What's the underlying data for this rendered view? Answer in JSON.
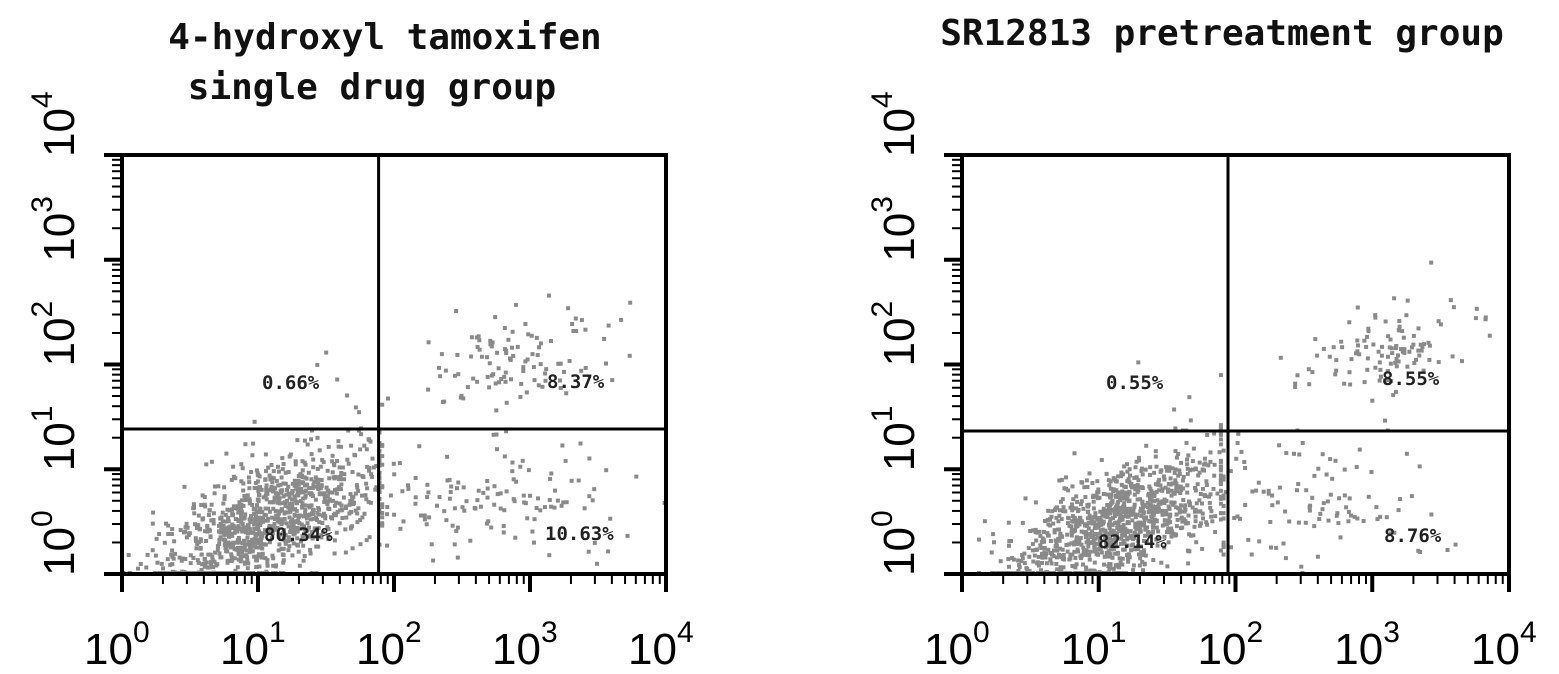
{
  "colors": {
    "frame": "#000000",
    "dots": "#8a8a8a",
    "background": "#ffffff"
  },
  "chart_data": [
    {
      "type": "scatter",
      "title_lines": [
        "4-hydroxyl tamoxifen",
        "single drug group"
      ],
      "x_scale": "log",
      "y_scale": "log",
      "xlim": [
        1,
        10000
      ],
      "ylim": [
        1,
        10000
      ],
      "x_ticks": [
        {
          "base": "10",
          "exp": "0"
        },
        {
          "base": "10",
          "exp": "1"
        },
        {
          "base": "10",
          "exp": "2"
        },
        {
          "base": "10",
          "exp": "3"
        },
        {
          "base": "10",
          "exp": "4"
        }
      ],
      "y_ticks": [
        {
          "base": "10",
          "exp": "0"
        },
        {
          "base": "10",
          "exp": "1"
        },
        {
          "base": "10",
          "exp": "2"
        },
        {
          "base": "10",
          "exp": "3"
        },
        {
          "base": "10",
          "exp": "4"
        }
      ],
      "gate": {
        "x": 80,
        "y": 24
      },
      "quadrant_labels": {
        "upper_left": "0.66%",
        "upper_right": "8.37%",
        "lower_left": "80.34%",
        "lower_right": "10.63%"
      },
      "populations": [
        {
          "region": "lower_left",
          "percent": 80.34,
          "n": 1050,
          "cx": 12,
          "cy": 3.2,
          "sx": 0.42,
          "sy": 0.33,
          "rho": 0.62,
          "xr": [
            1,
            80
          ],
          "yr": [
            1,
            24
          ]
        },
        {
          "region": "lower_right",
          "percent": 10.63,
          "n": 140,
          "cx": 400,
          "cy": 5,
          "sx": 0.55,
          "sy": 0.3,
          "rho": 0.0,
          "xr": [
            80,
            10000
          ],
          "yr": [
            1,
            24
          ]
        },
        {
          "region": "upper_right",
          "percent": 8.37,
          "n": 110,
          "cx": 700,
          "cy": 120,
          "sx": 0.35,
          "sy": 0.22,
          "rho": 0.3,
          "xr": [
            80,
            10000
          ],
          "yr": [
            24,
            10000
          ]
        },
        {
          "region": "upper_left",
          "percent": 0.66,
          "n": 9,
          "cx": 45,
          "cy": 55,
          "sx": 0.2,
          "sy": 0.25,
          "rho": 0.0,
          "xr": [
            1,
            80
          ],
          "yr": [
            24,
            10000
          ]
        }
      ]
    },
    {
      "type": "scatter",
      "title_lines": [
        "SR12813 pretreatment group"
      ],
      "x_scale": "log",
      "y_scale": "log",
      "xlim": [
        1,
        10000
      ],
      "ylim": [
        1,
        10000
      ],
      "x_ticks": [
        {
          "base": "10",
          "exp": "0"
        },
        {
          "base": "10",
          "exp": "1"
        },
        {
          "base": "10",
          "exp": "2"
        },
        {
          "base": "10",
          "exp": "3"
        },
        {
          "base": "10",
          "exp": "4"
        }
      ],
      "y_ticks": [
        {
          "base": "10",
          "exp": "0"
        },
        {
          "base": "10",
          "exp": "1"
        },
        {
          "base": "10",
          "exp": "2"
        },
        {
          "base": "10",
          "exp": "3"
        },
        {
          "base": "10",
          "exp": "4"
        }
      ],
      "gate": {
        "x": 80,
        "y": 24
      },
      "quadrant_labels": {
        "upper_left": "0.55%",
        "upper_right": "8.55%",
        "lower_left": "82.14%",
        "lower_right": "8.76%"
      },
      "populations": [
        {
          "region": "lower_left",
          "percent": 82.14,
          "n": 1080,
          "cx": 13,
          "cy": 3.0,
          "sx": 0.4,
          "sy": 0.33,
          "rho": 0.6,
          "xr": [
            1,
            80
          ],
          "yr": [
            1,
            24
          ]
        },
        {
          "region": "lower_right",
          "percent": 8.76,
          "n": 115,
          "cx": 300,
          "cy": 5,
          "sx": 0.5,
          "sy": 0.3,
          "rho": 0.0,
          "xr": [
            80,
            10000
          ],
          "yr": [
            1,
            24
          ]
        },
        {
          "region": "upper_right",
          "percent": 8.55,
          "n": 115,
          "cx": 1200,
          "cy": 130,
          "sx": 0.35,
          "sy": 0.25,
          "rho": 0.3,
          "xr": [
            80,
            10000
          ],
          "yr": [
            24,
            10000
          ]
        },
        {
          "region": "upper_left",
          "percent": 0.55,
          "n": 8,
          "cx": 50,
          "cy": 45,
          "sx": 0.2,
          "sy": 0.25,
          "rho": 0.0,
          "xr": [
            1,
            80
          ],
          "yr": [
            24,
            10000
          ]
        }
      ]
    }
  ]
}
